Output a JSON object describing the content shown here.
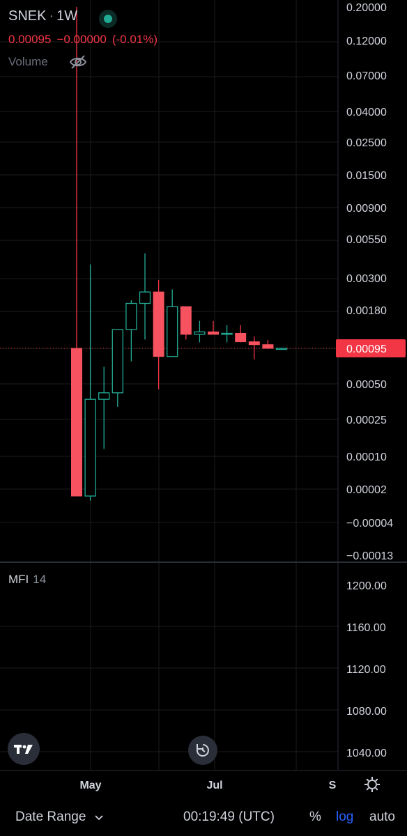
{
  "header": {
    "symbol": "SNEK",
    "separator": "·",
    "interval": "1W",
    "price": "0.00095",
    "change": "−0.00000",
    "change_pct": "(-0.01%)",
    "volume_label": "Volume"
  },
  "indicator": {
    "name": "MFI",
    "period": "14"
  },
  "bottom_bar": {
    "date_range_label": "Date Range",
    "clock": "00:19:49 (UTC)",
    "percent_label": "%",
    "log_label": "log",
    "auto_label": "auto"
  },
  "colors": {
    "up": "#22ab94",
    "down": "#f23645",
    "down_fill": "#f7525f",
    "grid": "#1c1c1c",
    "accent": "#2962ff"
  },
  "chart_data": [
    {
      "type": "candlestick",
      "scale": "log",
      "x_tick_labels": [
        "May",
        "Jul",
        "S"
      ],
      "price_tick_labels": [
        "0.20000",
        "0.12000",
        "0.07000",
        "0.04000",
        "0.02500",
        "0.01500",
        "0.00900",
        "0.00550",
        "0.00300",
        "0.00180",
        "0.00050",
        "0.00025",
        "0.00010",
        "0.00002",
        "−0.00004",
        "−0.00013"
      ],
      "last_price_label": "0.00095",
      "last_price": 0.00095,
      "candles": [
        {
          "o": 0.00095,
          "h": 0.2,
          "l": 2e-05,
          "c": 2e-05
        },
        {
          "o": 2e-05,
          "h": 0.0037,
          "l": 1.5e-05,
          "c": 0.00037
        },
        {
          "o": 0.00037,
          "h": 0.00068,
          "l": 0.00012,
          "c": 0.00042
        },
        {
          "o": 0.00042,
          "h": 0.0013,
          "l": 0.00032,
          "c": 0.0013
        },
        {
          "o": 0.0013,
          "h": 0.0021,
          "l": 0.00075,
          "c": 0.002
        },
        {
          "o": 0.002,
          "h": 0.0044,
          "l": 0.0011,
          "c": 0.0024
        },
        {
          "o": 0.0024,
          "h": 0.0029,
          "l": 0.00045,
          "c": 0.00082
        },
        {
          "o": 0.00082,
          "h": 0.0025,
          "l": 0.00082,
          "c": 0.0019
        },
        {
          "o": 0.0019,
          "h": 0.0019,
          "l": 0.0011,
          "c": 0.0012
        },
        {
          "o": 0.0012,
          "h": 0.0015,
          "l": 0.00105,
          "c": 0.00125
        },
        {
          "o": 0.00125,
          "h": 0.0015,
          "l": 0.00122,
          "c": 0.0012
        },
        {
          "o": 0.0012,
          "h": 0.0014,
          "l": 0.00105,
          "c": 0.00122
        },
        {
          "o": 0.00122,
          "h": 0.0014,
          "l": 0.00105,
          "c": 0.00106
        },
        {
          "o": 0.00106,
          "h": 0.00116,
          "l": 0.00078,
          "c": 0.00101
        },
        {
          "o": 0.00101,
          "h": 0.00109,
          "l": 0.00094,
          "c": 0.00095
        },
        {
          "o": 0.00095,
          "h": 0.00096,
          "l": 0.00094,
          "c": 0.00095
        }
      ]
    },
    {
      "type": "line",
      "name": "MFI 14",
      "y_tick_labels": [
        "1200.00",
        "1160.00",
        "1120.00",
        "1080.00",
        "1040.00"
      ],
      "values": []
    }
  ]
}
